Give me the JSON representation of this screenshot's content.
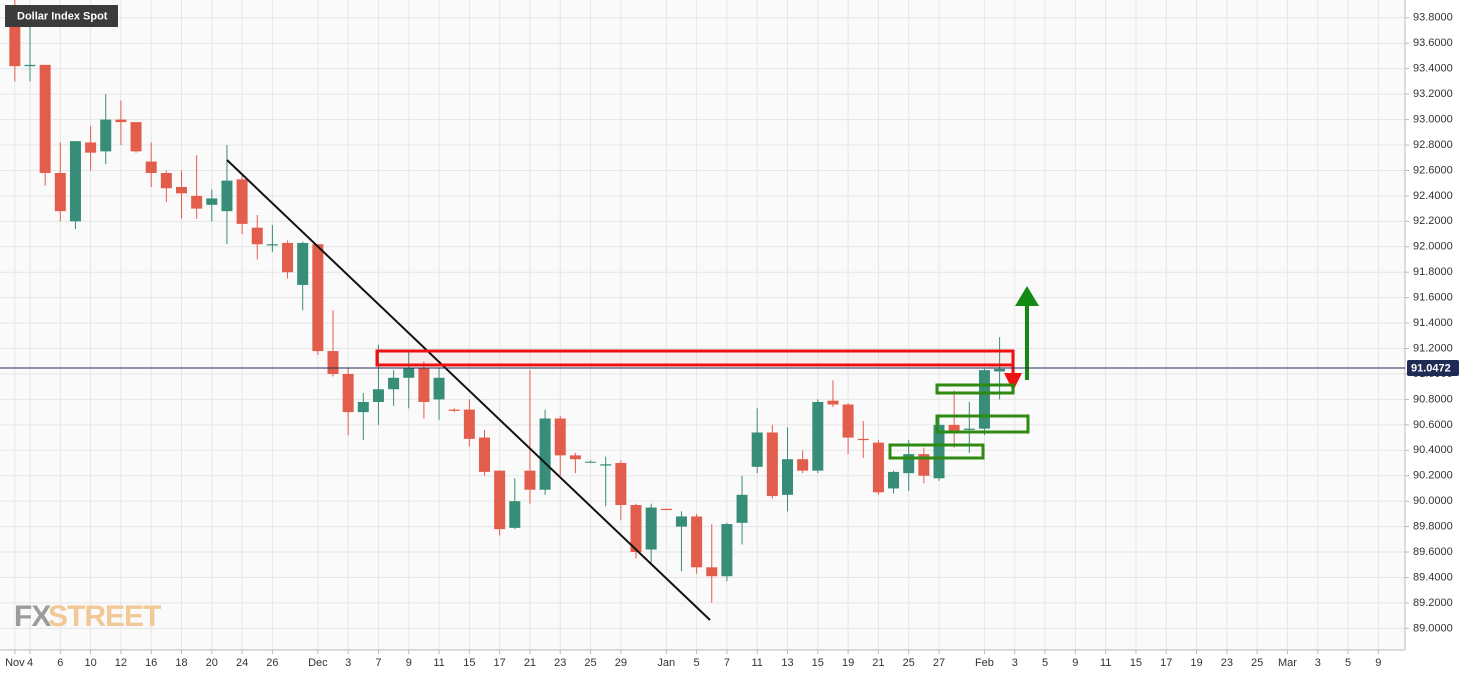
{
  "chart_data": {
    "type": "candlestick",
    "title": "Dollar Index Spot",
    "watermark": [
      "FX",
      "STREET"
    ],
    "categories": [
      "Nov",
      "4",
      null,
      "6",
      null,
      "10",
      null,
      "12",
      null,
      "16",
      null,
      "18",
      null,
      "20",
      null,
      "24",
      null,
      "26",
      null,
      null,
      "Dec",
      null,
      "3",
      null,
      "7",
      null,
      "9",
      null,
      "11",
      null,
      "15",
      null,
      "17",
      null,
      "21",
      null,
      "23",
      null,
      "25",
      null,
      "29",
      null,
      null,
      "Jan",
      null,
      "5",
      null,
      "7",
      null,
      "11",
      null,
      "13",
      null,
      "15",
      null,
      "19",
      null,
      "21",
      null,
      "25",
      null,
      "27",
      null,
      null,
      "Feb",
      null,
      "3",
      null,
      "5",
      null,
      "9",
      null,
      "11",
      null,
      "15",
      null,
      "17",
      null,
      "19",
      null,
      "23",
      null,
      "25",
      null,
      "Mar",
      null,
      "3",
      null,
      "5",
      null,
      "9"
    ],
    "open": [
      93.9,
      93.42,
      93.43,
      92.58,
      92.2,
      92.82,
      92.75,
      93.0,
      92.98,
      92.67,
      92.58,
      92.47,
      92.4,
      92.33,
      92.28,
      92.53,
      92.15,
      92.01,
      92.03,
      91.7,
      92.02,
      91.18,
      91.0,
      90.7,
      90.78,
      90.88,
      90.97,
      91.05,
      90.8,
      90.72,
      90.72,
      90.5,
      90.24,
      89.79,
      90.24,
      90.09,
      90.65,
      90.36,
      90.31,
      90.28,
      90.3,
      89.97,
      89.62,
      89.94,
      89.8,
      89.88,
      89.48,
      89.41,
      89.83,
      90.27,
      90.54,
      90.05,
      90.33,
      90.24,
      90.79,
      90.76,
      90.49,
      90.46,
      90.1,
      90.22,
      90.37,
      90.18,
      90.6,
      90.56,
      90.57,
      91.02,
      null,
      null,
      null,
      null,
      null,
      null,
      null,
      null,
      null,
      null,
      null,
      null,
      null,
      null,
      null,
      null,
      null,
      null,
      null,
      null,
      null,
      null,
      null,
      null,
      null
    ],
    "high": [
      93.95,
      93.9,
      93.43,
      92.82,
      92.83,
      92.95,
      93.2,
      93.15,
      92.98,
      92.82,
      92.6,
      92.6,
      92.72,
      92.45,
      92.8,
      92.56,
      92.25,
      92.17,
      92.05,
      92.04,
      92.02,
      91.5,
      91.05,
      90.85,
      91.23,
      91.03,
      91.18,
      91.1,
      91.05,
      90.73,
      90.8,
      90.56,
      90.24,
      90.18,
      91.03,
      90.72,
      90.67,
      90.38,
      90.32,
      90.35,
      90.32,
      89.98,
      89.98,
      89.94,
      89.92,
      89.9,
      89.82,
      89.83,
      90.2,
      90.73,
      90.6,
      90.58,
      90.4,
      90.8,
      90.95,
      90.77,
      90.63,
      90.48,
      90.24,
      90.48,
      90.42,
      90.67,
      90.87,
      90.78,
      91.04,
      91.29,
      null,
      null,
      null,
      null,
      null,
      null,
      null,
      null,
      null,
      null,
      null,
      null,
      null,
      null,
      null,
      null,
      null,
      null,
      null,
      null,
      null,
      null,
      null,
      null,
      null
    ],
    "low": [
      93.3,
      93.3,
      92.48,
      92.2,
      92.14,
      92.6,
      92.65,
      92.8,
      92.74,
      92.47,
      92.35,
      92.22,
      92.22,
      92.2,
      92.02,
      92.1,
      91.9,
      91.96,
      91.75,
      91.5,
      91.15,
      90.98,
      90.52,
      90.48,
      90.6,
      90.75,
      90.73,
      90.65,
      90.64,
      90.7,
      90.43,
      90.2,
      89.73,
      89.78,
      89.98,
      90.05,
      90.2,
      90.22,
      90.3,
      89.96,
      89.85,
      89.55,
      89.5,
      89.93,
      89.45,
      89.43,
      89.2,
      89.37,
      89.66,
      90.22,
      90.02,
      89.92,
      90.22,
      90.22,
      90.74,
      90.37,
      90.34,
      90.05,
      90.06,
      90.08,
      90.14,
      90.16,
      90.42,
      90.38,
      90.52,
      90.8,
      null,
      null,
      null,
      null,
      null,
      null,
      null,
      null,
      null,
      null,
      null,
      null,
      null,
      null,
      null,
      null,
      null,
      null,
      null,
      null,
      null,
      null,
      null,
      null,
      null
    ],
    "close": [
      93.42,
      93.43,
      92.58,
      92.28,
      92.83,
      92.74,
      93.0,
      92.98,
      92.75,
      92.58,
      92.46,
      92.42,
      92.3,
      92.38,
      92.52,
      92.18,
      92.02,
      92.02,
      91.8,
      92.03,
      91.18,
      91.0,
      90.7,
      90.78,
      90.88,
      90.97,
      91.05,
      90.78,
      90.97,
      90.71,
      90.49,
      90.23,
      89.78,
      90.0,
      90.09,
      90.65,
      90.36,
      90.33,
      90.31,
      90.29,
      89.97,
      89.6,
      89.95,
      89.93,
      89.88,
      89.48,
      89.41,
      89.82,
      90.05,
      90.54,
      90.04,
      90.33,
      90.24,
      90.78,
      90.76,
      90.5,
      90.48,
      90.07,
      90.23,
      90.37,
      90.2,
      90.6,
      90.55,
      90.57,
      91.03,
      91.04,
      null,
      null,
      null,
      null,
      null,
      null,
      null,
      null,
      null,
      null,
      null,
      null,
      null,
      null,
      null,
      null,
      null,
      null,
      null,
      null,
      null,
      null,
      null,
      null,
      null
    ],
    "up_color": "#378d78",
    "down_color": "#e35d4c",
    "last_price": {
      "value": 91.0472,
      "label": "91.0472"
    },
    "ylim": [
      88.83,
      93.94
    ],
    "yticks": [
      {
        "value": 89.0,
        "label": "89.0000"
      },
      {
        "value": 89.2,
        "label": "89.2000"
      },
      {
        "value": 89.4,
        "label": "89.4000"
      },
      {
        "value": 89.6,
        "label": "89.6000"
      },
      {
        "value": 89.8,
        "label": "89.8000"
      },
      {
        "value": 90.0,
        "label": "90.0000"
      },
      {
        "value": 90.2,
        "label": "90.2000"
      },
      {
        "value": 90.4,
        "label": "90.4000"
      },
      {
        "value": 90.6,
        "label": "90.6000"
      },
      {
        "value": 90.8,
        "label": "90.8000"
      },
      {
        "value": 91.0,
        "label": "91.0000"
      },
      {
        "value": 91.2,
        "label": "91.2000"
      },
      {
        "value": 91.4,
        "label": "91.4000"
      },
      {
        "value": 91.6,
        "label": "91.6000"
      },
      {
        "value": 91.8,
        "label": "91.8000"
      },
      {
        "value": 92.0,
        "label": "92.0000"
      },
      {
        "value": 92.2,
        "label": "92.2000"
      },
      {
        "value": 92.4,
        "label": "92.4000"
      },
      {
        "value": 92.6,
        "label": "92.6000"
      },
      {
        "value": 92.8,
        "label": "92.8000"
      },
      {
        "value": 93.0,
        "label": "93.0000"
      },
      {
        "value": 93.2,
        "label": "93.2000"
      },
      {
        "value": 93.4,
        "label": "93.4000"
      },
      {
        "value": 93.6,
        "label": "93.6000"
      },
      {
        "value": 93.8,
        "label": "93.8000"
      }
    ],
    "grid": true
  }
}
